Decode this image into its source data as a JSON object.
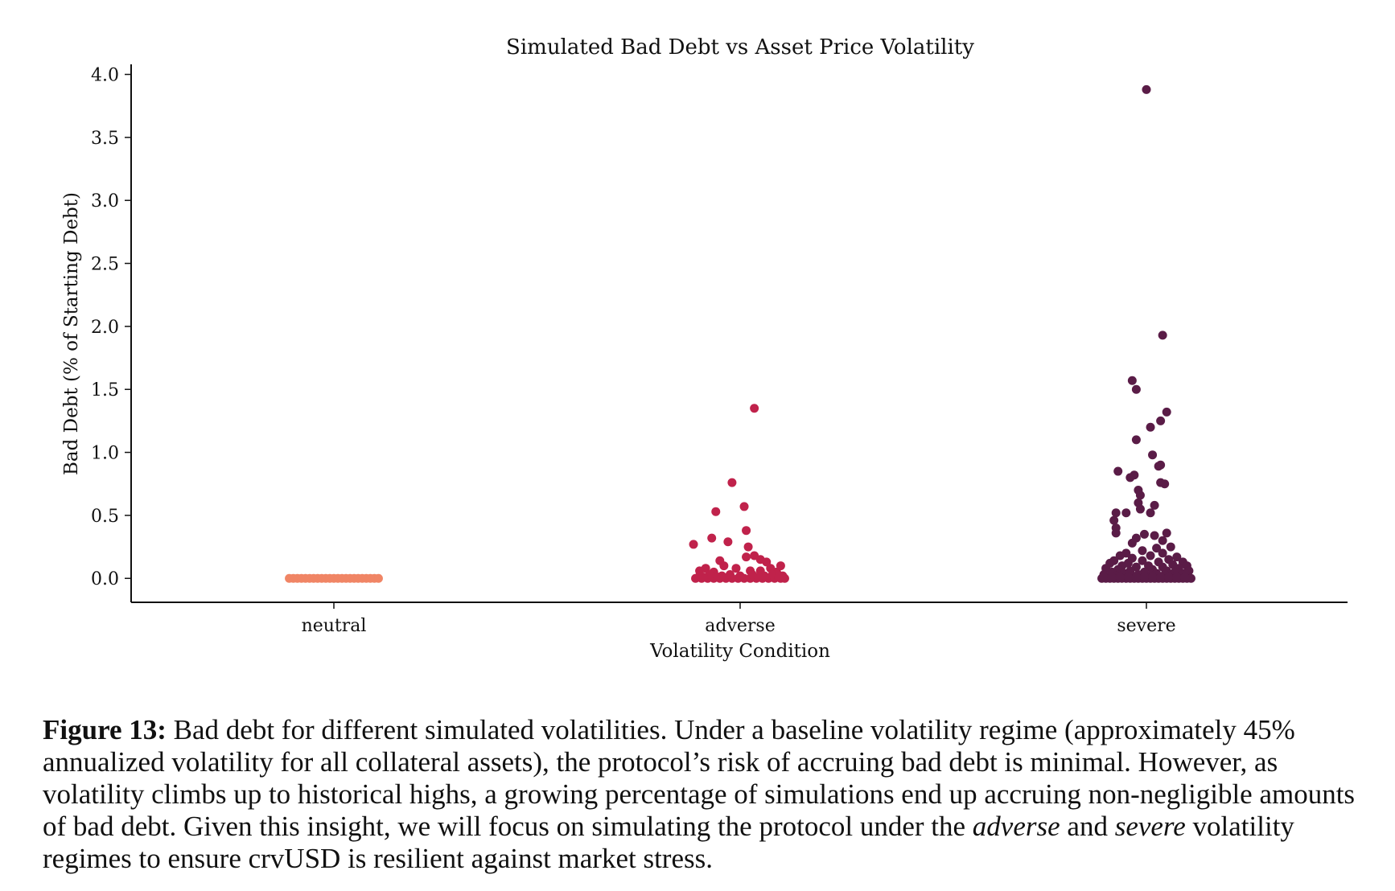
{
  "chart_data": {
    "type": "scatter",
    "title": "Simulated Bad Debt vs Asset Price Volatility",
    "xlabel": "Volatility Condition",
    "ylabel": "Bad Debt (% of Starting Debt)",
    "categories": [
      "neutral",
      "adverse",
      "severe"
    ],
    "ylim": [
      -0.19,
      4.08
    ],
    "yticks": [
      0.0,
      0.5,
      1.0,
      1.5,
      2.0,
      2.5,
      3.0,
      3.5,
      4.0
    ],
    "ytick_labels": [
      "0.0",
      "0.5",
      "1.0",
      "1.5",
      "2.0",
      "2.5",
      "3.0",
      "3.5",
      "4.0"
    ],
    "grid": false,
    "colors": {
      "neutral": "#f08565",
      "adverse": "#c0224b",
      "severe": "#5a1c47"
    },
    "series": [
      {
        "values": [
          [
            -0.22,
            0
          ],
          [
            -0.2,
            0
          ],
          [
            -0.18,
            0
          ],
          [
            -0.16,
            0
          ],
          [
            -0.14,
            0
          ],
          [
            -0.12,
            0
          ],
          [
            -0.1,
            0
          ],
          [
            -0.08,
            0
          ],
          [
            -0.06,
            0
          ],
          [
            -0.04,
            0
          ],
          [
            -0.02,
            0
          ],
          [
            0,
            0
          ],
          [
            0.02,
            0
          ],
          [
            0.04,
            0
          ],
          [
            0.06,
            0
          ],
          [
            0.08,
            0
          ],
          [
            0.1,
            0
          ],
          [
            0.12,
            0
          ],
          [
            0.14,
            0
          ],
          [
            0.16,
            0
          ],
          [
            0.18,
            0
          ],
          [
            0.2,
            0
          ],
          [
            0.22,
            0
          ]
        ]
      },
      {
        "values": [
          [
            0.07,
            1.35
          ],
          [
            -0.04,
            0.76
          ],
          [
            0.02,
            0.57
          ],
          [
            -0.12,
            0.53
          ],
          [
            0.03,
            0.38
          ],
          [
            -0.14,
            0.32
          ],
          [
            -0.06,
            0.29
          ],
          [
            -0.23,
            0.27
          ],
          [
            0.04,
            0.25
          ],
          [
            0.07,
            0.18
          ],
          [
            0.1,
            0.15
          ],
          [
            0.03,
            0.17
          ],
          [
            -0.1,
            0.14
          ],
          [
            0.13,
            0.13
          ],
          [
            0.2,
            0.1
          ],
          [
            -0.08,
            0.1
          ],
          [
            -0.17,
            0.08
          ],
          [
            0.15,
            0.08
          ],
          [
            -0.02,
            0.08
          ],
          [
            0.1,
            0.06
          ],
          [
            -0.2,
            0.06
          ],
          [
            0.05,
            0.06
          ],
          [
            -0.13,
            0.05
          ],
          [
            0.18,
            0.05
          ],
          [
            -0.22,
            0
          ],
          [
            -0.19,
            0
          ],
          [
            -0.16,
            0
          ],
          [
            -0.13,
            0
          ],
          [
            -0.1,
            0
          ],
          [
            -0.07,
            0
          ],
          [
            -0.04,
            0
          ],
          [
            -0.01,
            0
          ],
          [
            0.02,
            0
          ],
          [
            0.05,
            0
          ],
          [
            0.08,
            0
          ],
          [
            0.11,
            0
          ],
          [
            0.14,
            0
          ],
          [
            0.17,
            0
          ],
          [
            0.2,
            0
          ],
          [
            0.22,
            0
          ],
          [
            -0.2,
            0.02
          ],
          [
            -0.15,
            0.03
          ],
          [
            -0.09,
            0.02
          ],
          [
            -0.05,
            0.03
          ],
          [
            0,
            0.02
          ],
          [
            0.06,
            0.03
          ],
          [
            0.12,
            0.02
          ],
          [
            0.16,
            0.03
          ],
          [
            0.21,
            0.02
          ],
          [
            -0.18,
            0.01
          ],
          [
            -0.11,
            0.01
          ],
          [
            0.09,
            0.01
          ],
          [
            0.19,
            0.01
          ]
        ]
      },
      {
        "values": [
          [
            0,
            3.88
          ],
          [
            0.08,
            1.93
          ],
          [
            -0.07,
            1.57
          ],
          [
            -0.05,
            1.5
          ],
          [
            0.1,
            1.32
          ],
          [
            0.07,
            1.25
          ],
          [
            0.02,
            1.2
          ],
          [
            -0.05,
            1.1
          ],
          [
            0.03,
            0.98
          ],
          [
            0.07,
            0.9
          ],
          [
            0.06,
            0.89
          ],
          [
            -0.14,
            0.85
          ],
          [
            -0.08,
            0.8
          ],
          [
            -0.06,
            0.82
          ],
          [
            0.07,
            0.76
          ],
          [
            0.09,
            0.75
          ],
          [
            -0.04,
            0.7
          ],
          [
            -0.03,
            0.66
          ],
          [
            -0.04,
            0.6
          ],
          [
            0.04,
            0.58
          ],
          [
            -0.03,
            0.55
          ],
          [
            -0.1,
            0.52
          ],
          [
            0.02,
            0.52
          ],
          [
            -0.15,
            0.52
          ],
          [
            -0.16,
            0.46
          ],
          [
            -0.15,
            0.4
          ],
          [
            -0.15,
            0.36
          ],
          [
            0.1,
            0.36
          ],
          [
            -0.01,
            0.35
          ],
          [
            0.04,
            0.34
          ],
          [
            -0.05,
            0.32
          ],
          [
            0.08,
            0.3
          ],
          [
            -0.07,
            0.28
          ],
          [
            0.12,
            0.25
          ],
          [
            -0.02,
            0.22
          ],
          [
            0.05,
            0.24
          ],
          [
            -0.1,
            0.2
          ],
          [
            0.08,
            0.2
          ],
          [
            -0.13,
            0.18
          ],
          [
            0.15,
            0.17
          ],
          [
            0.02,
            0.18
          ],
          [
            -0.07,
            0.16
          ],
          [
            0.11,
            0.15
          ],
          [
            -0.16,
            0.14
          ],
          [
            -0.02,
            0.14
          ],
          [
            0.06,
            0.13
          ],
          [
            0.18,
            0.13
          ],
          [
            -0.18,
            0.12
          ],
          [
            -0.09,
            0.12
          ],
          [
            0.13,
            0.11
          ],
          [
            0.01,
            0.1
          ],
          [
            -0.12,
            0.1
          ],
          [
            0.2,
            0.1
          ],
          [
            0.08,
            0.09
          ],
          [
            -0.05,
            0.09
          ],
          [
            -0.2,
            0.08
          ],
          [
            0.16,
            0.08
          ],
          [
            0.03,
            0.07
          ],
          [
            -0.14,
            0.07
          ],
          [
            0.1,
            0.06
          ],
          [
            -0.08,
            0.06
          ],
          [
            0.21,
            0.06
          ],
          [
            -0.01,
            0.05
          ],
          [
            -0.17,
            0.05
          ],
          [
            0.14,
            0.05
          ],
          [
            0.05,
            0.04
          ],
          [
            -0.11,
            0.04
          ],
          [
            0.19,
            0.04
          ],
          [
            -0.04,
            0.03
          ],
          [
            0.09,
            0.03
          ],
          [
            -0.21,
            0.03
          ],
          [
            0.12,
            0.02
          ],
          [
            -0.07,
            0.02
          ],
          [
            0.02,
            0.02
          ],
          [
            -0.15,
            0.02
          ],
          [
            0.17,
            0.02
          ],
          [
            -0.22,
            0
          ],
          [
            -0.2,
            0
          ],
          [
            -0.18,
            0
          ],
          [
            -0.16,
            0
          ],
          [
            -0.14,
            0
          ],
          [
            -0.12,
            0
          ],
          [
            -0.1,
            0
          ],
          [
            -0.08,
            0
          ],
          [
            -0.06,
            0
          ],
          [
            -0.04,
            0
          ],
          [
            -0.02,
            0
          ],
          [
            0,
            0
          ],
          [
            0.02,
            0
          ],
          [
            0.04,
            0
          ],
          [
            0.06,
            0
          ],
          [
            0.08,
            0
          ],
          [
            0.1,
            0
          ],
          [
            0.12,
            0
          ],
          [
            0.14,
            0
          ],
          [
            0.16,
            0
          ],
          [
            0.18,
            0
          ],
          [
            0.2,
            0
          ],
          [
            0.22,
            0
          ],
          [
            -0.21,
            0.01
          ],
          [
            -0.17,
            0.01
          ],
          [
            -0.13,
            0.01
          ],
          [
            -0.09,
            0.01
          ],
          [
            -0.05,
            0.01
          ],
          [
            -0.01,
            0.01
          ],
          [
            0.03,
            0.01
          ],
          [
            0.07,
            0.01
          ],
          [
            0.11,
            0.01
          ],
          [
            0.15,
            0.01
          ],
          [
            0.19,
            0.01
          ]
        ]
      }
    ]
  },
  "caption": {
    "label": "Figure 13:",
    "text_1": " Bad debt for different simulated volatilities. Under a baseline volatility regime (approximately 45% annualized volatility for all collateral assets), the protocol’s risk of accruing bad debt is minimal. However, as volatility climbs up to historical highs, a growing percentage of simulations end up accruing non-negligible amounts of bad debt. Given this insight, we will focus on simulating the protocol under the ",
    "em_1": "adverse",
    "text_2": " and ",
    "em_2": "severe",
    "text_3": " volatility regimes to ensure crvUSD is resilient against market stress."
  }
}
